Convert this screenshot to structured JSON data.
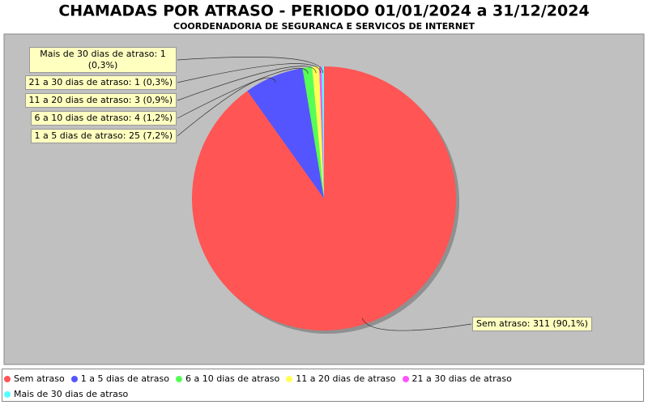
{
  "chart_data": {
    "type": "pie",
    "title": "CHAMADAS POR ATRASO - PERIODO 01/01/2024 a 31/12/2024",
    "subtitle": "COORDENADORIA DE SEGURANCA E SERVICOS DE INTERNET",
    "categories": [
      "Sem atraso",
      "1 a 5 dias de atraso",
      "6 a 10 dias de atraso",
      "11 a 20 dias de atraso",
      "21 a 30 dias de atraso",
      "Mais de 30 dias de atraso"
    ],
    "values": [
      311,
      25,
      4,
      3,
      1,
      1
    ],
    "value_labels": [
      "Sem atraso: 311 (90,1%)",
      "1 a 5 dias de atraso: 25 (7,2%)",
      "6 a 10 dias de atraso: 4 (1,2%)",
      "11 a 20 dias de atraso: 3 (0,9%)",
      "21 a 30 dias de atraso: 1 (0,3%)",
      "Mais de 30 dias de atraso: 1 (0,3%)"
    ],
    "colors": [
      "#ff5555",
      "#5555ff",
      "#55ff55",
      "#ffff55",
      "#ff55ff",
      "#55ffff"
    ],
    "legend": "bottom"
  }
}
